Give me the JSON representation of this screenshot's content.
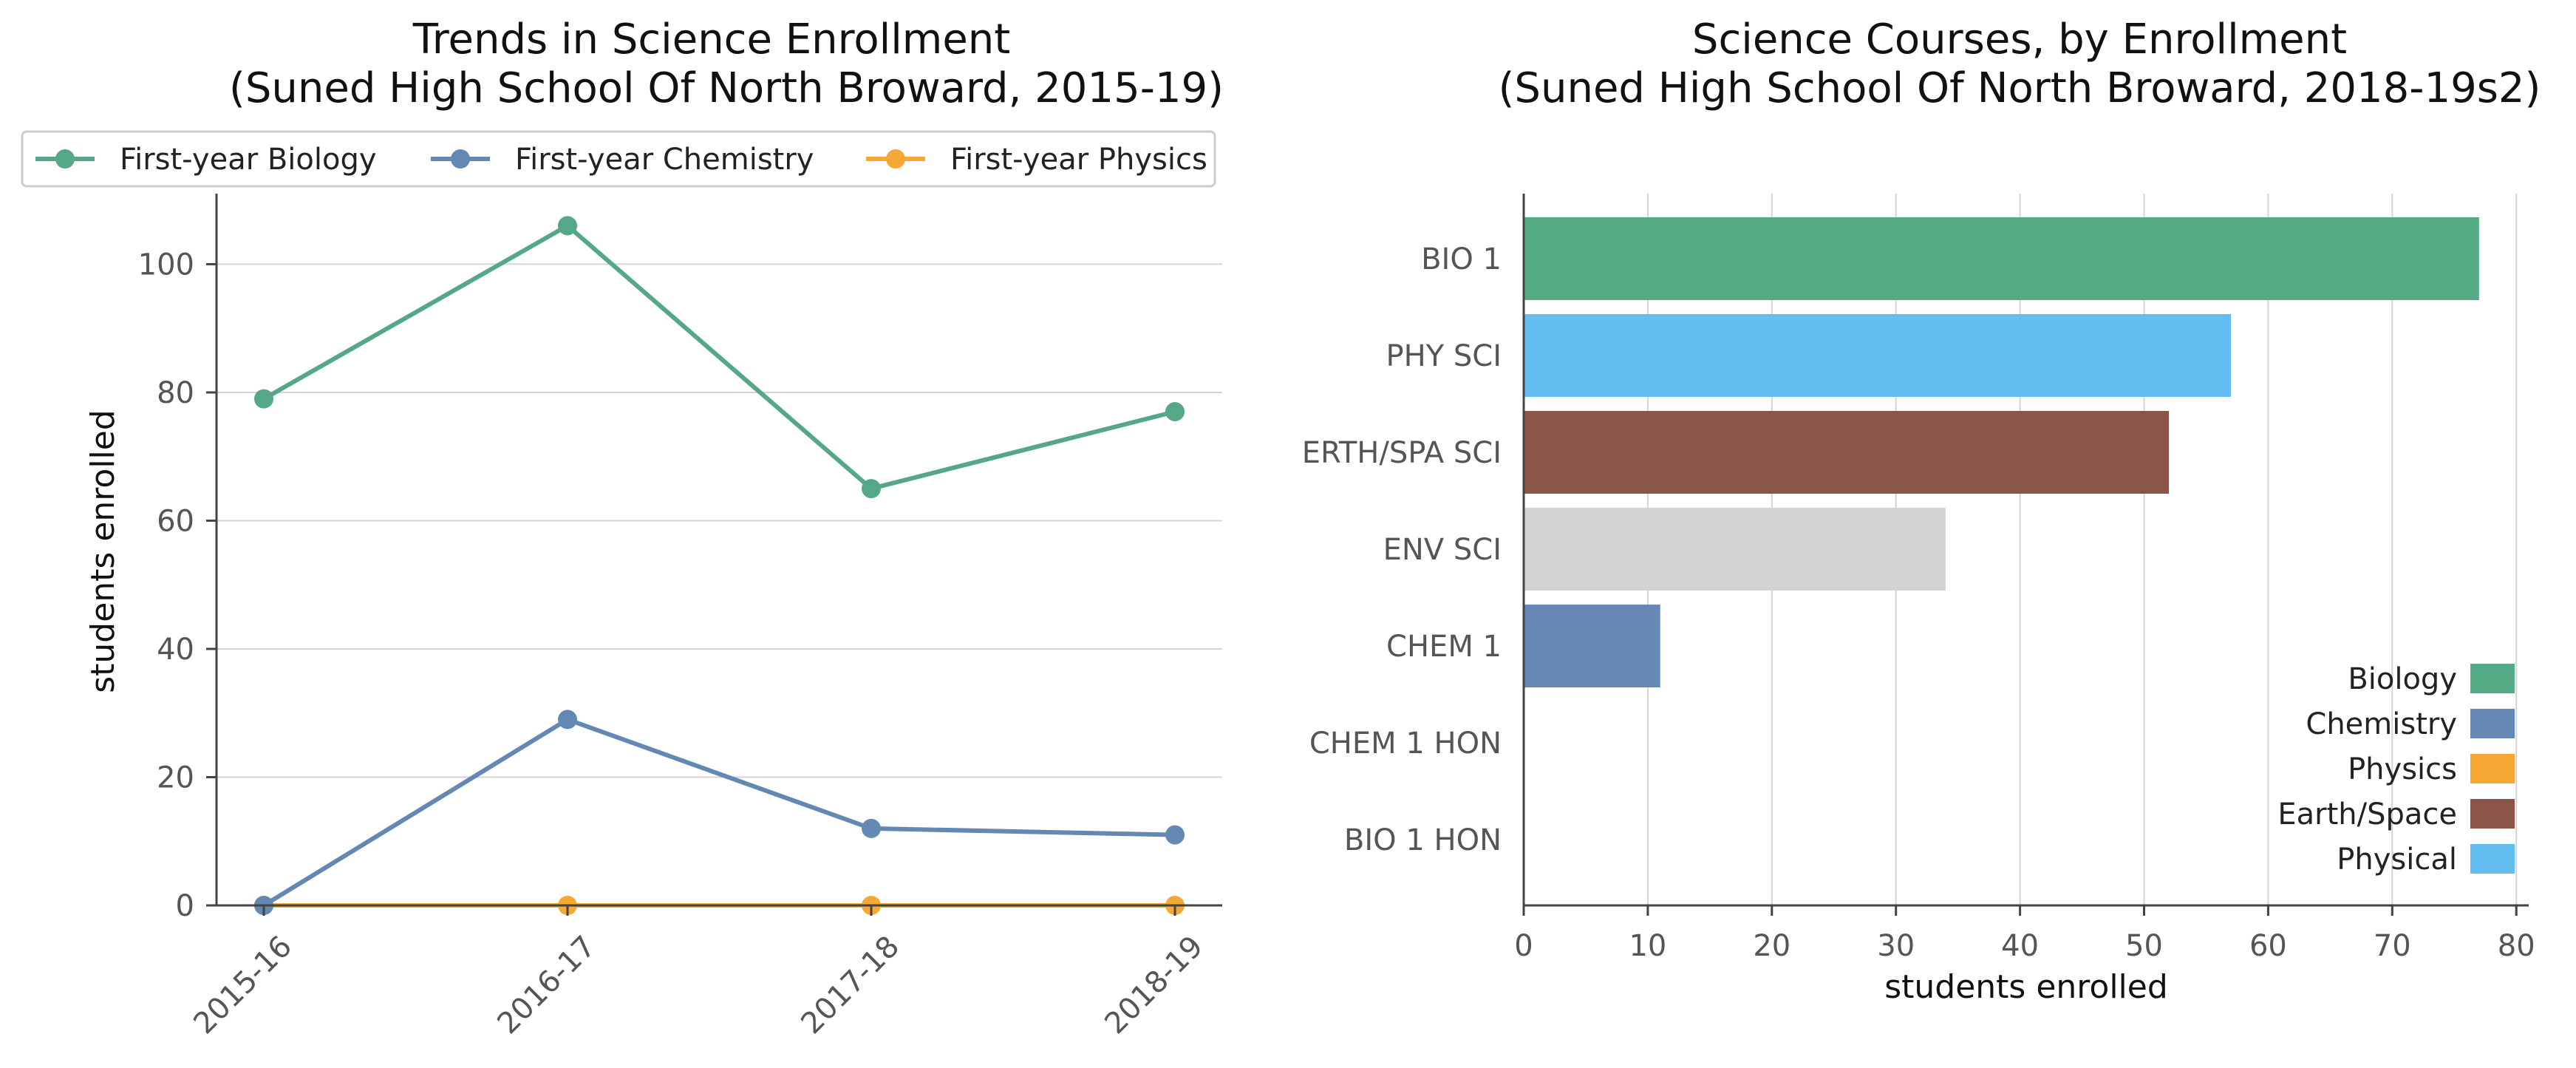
{
  "chart_data": [
    {
      "type": "line",
      "title_lines": [
        "Trends in Science Enrollment",
        "(Suned High School Of North Broward, 2015-19)"
      ],
      "xlabel": "",
      "ylabel": "students enrolled",
      "categories": [
        "2015-16",
        "2016-17",
        "2017-18",
        "2018-19"
      ],
      "yticks": [
        "0",
        "20",
        "40",
        "60",
        "80",
        "100"
      ],
      "ylim": [
        0,
        111
      ],
      "grid": "horizontal",
      "legend_position": "top",
      "series": [
        {
          "name": "First-year Biology",
          "color": "#55a886",
          "values": [
            79,
            106,
            65,
            77
          ]
        },
        {
          "name": "First-year Chemistry",
          "color": "#6488b4",
          "values": [
            0,
            29,
            12,
            11
          ]
        },
        {
          "name": "First-year Physics",
          "color": "#f5a833",
          "values": [
            0,
            0,
            0,
            0
          ]
        }
      ]
    },
    {
      "type": "bar",
      "orientation": "horizontal",
      "title_lines": [
        "Science Courses, by Enrollment",
        "(Suned High School Of North Broward, 2018-19s2)"
      ],
      "xlabel": "students enrolled",
      "ylabel": "",
      "xticks": [
        "0",
        "10",
        "20",
        "30",
        "40",
        "50",
        "60",
        "70",
        "80"
      ],
      "xlim": [
        0,
        81
      ],
      "grid": "vertical",
      "legend_position": "lower-right",
      "bars": [
        {
          "label": "BIO 1",
          "value": 77,
          "color": "#55ab86"
        },
        {
          "label": "PHY SCI",
          "value": 57,
          "color": "#63bdf0"
        },
        {
          "label": "ERTH/SPA SCI",
          "value": 52,
          "color": "#8a5548"
        },
        {
          "label": "ENV SCI",
          "value": 34,
          "color": "#d3d3d3"
        },
        {
          "label": "CHEM 1",
          "value": 11,
          "color": "#6688b5"
        },
        {
          "label": "CHEM 1 HON",
          "value": 0,
          "color": "#6688b5"
        },
        {
          "label": "BIO 1 HON",
          "value": 0,
          "color": "#55ab86"
        }
      ],
      "legend": [
        {
          "name": "Biology",
          "color": "#55ab86"
        },
        {
          "name": "Chemistry",
          "color": "#6688b5"
        },
        {
          "name": "Physics",
          "color": "#f5a833"
        },
        {
          "name": "Earth/Space",
          "color": "#8a5548"
        },
        {
          "name": "Physical",
          "color": "#63bdf0"
        }
      ]
    }
  ]
}
